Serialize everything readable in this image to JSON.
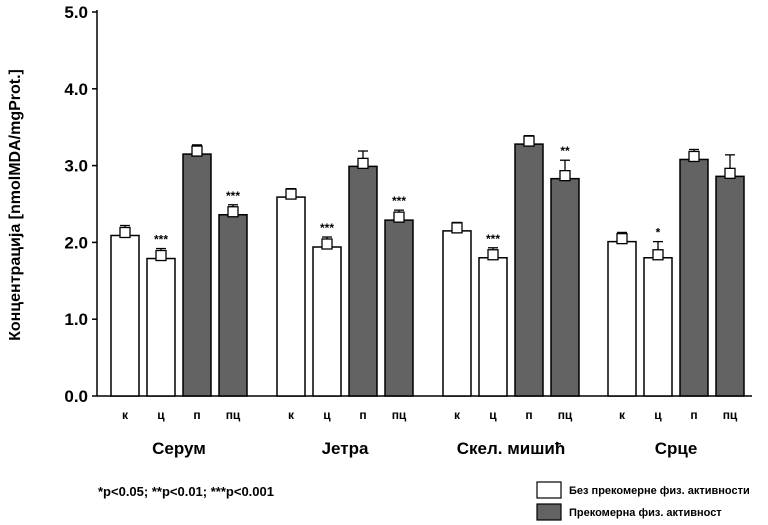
{
  "chart_data": {
    "type": "bar",
    "ylabel": "Концентрација [nmolMDA/mgProt.]",
    "ylim": [
      0,
      5
    ],
    "yticks": [
      "0.0",
      "1.0",
      "2.0",
      "3.0",
      "4.0",
      "5.0"
    ],
    "groups": [
      {
        "label": "Серум",
        "bars": [
          {
            "cat": "к",
            "value": 2.09,
            "err": 0.13,
            "series": 0,
            "sig": ""
          },
          {
            "cat": "ц",
            "value": 1.79,
            "err": 0.13,
            "series": 0,
            "sig": "***"
          },
          {
            "cat": "п",
            "value": 3.15,
            "err": 0.12,
            "series": 1,
            "sig": ""
          },
          {
            "cat": "пц",
            "value": 2.36,
            "err": 0.13,
            "series": 1,
            "sig": "***"
          }
        ]
      },
      {
        "label": "Јетра",
        "bars": [
          {
            "cat": "к",
            "value": 2.59,
            "err": 0.11,
            "series": 0,
            "sig": ""
          },
          {
            "cat": "ц",
            "value": 1.94,
            "err": 0.13,
            "series": 0,
            "sig": "***"
          },
          {
            "cat": "п",
            "value": 2.99,
            "err": 0.2,
            "series": 1,
            "sig": ""
          },
          {
            "cat": "пц",
            "value": 2.29,
            "err": 0.13,
            "series": 1,
            "sig": "***"
          }
        ]
      },
      {
        "label": "Скел. мишић",
        "bars": [
          {
            "cat": "к",
            "value": 2.15,
            "err": 0.11,
            "series": 0,
            "sig": ""
          },
          {
            "cat": "ц",
            "value": 1.8,
            "err": 0.13,
            "series": 0,
            "sig": "***"
          },
          {
            "cat": "п",
            "value": 3.28,
            "err": 0.11,
            "series": 1,
            "sig": ""
          },
          {
            "cat": "пц",
            "value": 2.83,
            "err": 0.24,
            "series": 1,
            "sig": "**"
          }
        ]
      },
      {
        "label": "Срце",
        "bars": [
          {
            "cat": "к",
            "value": 2.01,
            "err": 0.12,
            "series": 0,
            "sig": ""
          },
          {
            "cat": "ц",
            "value": 1.8,
            "err": 0.21,
            "series": 0,
            "sig": "*"
          },
          {
            "cat": "п",
            "value": 3.08,
            "err": 0.13,
            "series": 1,
            "sig": ""
          },
          {
            "cat": "пц",
            "value": 2.86,
            "err": 0.28,
            "series": 1,
            "sig": ""
          }
        ]
      }
    ],
    "series": [
      {
        "name": "Без прекомерне физ. активности",
        "color": "#ffffff"
      },
      {
        "name": "Прекомерна физ. активност",
        "color": "#636363"
      }
    ],
    "legend_position": "bottom-right",
    "grid": false
  },
  "footnote": "*p<0.05; **p<0.01; ***p<0.001"
}
